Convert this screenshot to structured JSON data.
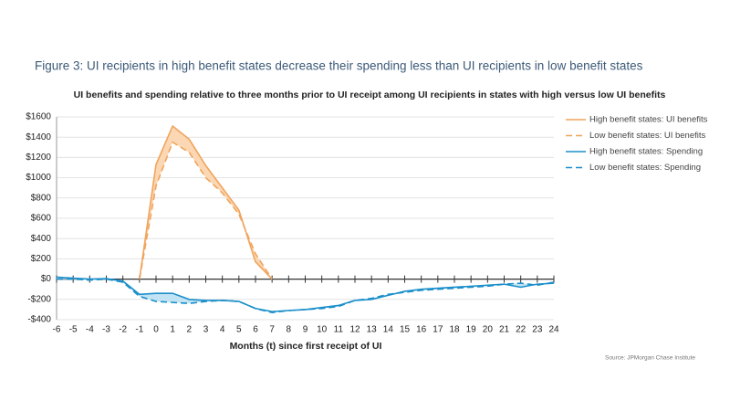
{
  "chart_data": {
    "type": "line",
    "title": "Figure 3: UI recipients in high benefit states decrease their spending less than UI recipients in low benefit states",
    "subtitle": "UI benefits and spending relative to three months prior to UI receipt among UI recipients in states with high versus low UI benefits",
    "x_label": "Months (t) since first receipt of UI",
    "source": "Source: JPMorgan Chase Institute",
    "x": [
      -6,
      -5,
      -4,
      -3,
      -2,
      -1,
      0,
      1,
      2,
      3,
      4,
      5,
      6,
      7,
      8,
      9,
      10,
      11,
      12,
      13,
      14,
      15,
      16,
      17,
      18,
      19,
      20,
      21,
      22,
      23,
      24
    ],
    "xlim": [
      -6,
      24
    ],
    "xticks": [
      -6,
      -5,
      -4,
      -3,
      -2,
      -1,
      0,
      1,
      2,
      3,
      4,
      5,
      6,
      7,
      8,
      9,
      10,
      11,
      12,
      13,
      14,
      15,
      16,
      17,
      18,
      19,
      20,
      21,
      22,
      23,
      24
    ],
    "ylim": [
      -400,
      1600
    ],
    "yticks": [
      {
        "value": -400,
        "label": "-$400"
      },
      {
        "value": -200,
        "label": "-$200"
      },
      {
        "value": 0,
        "label": "$0"
      },
      {
        "value": 200,
        "label": "$200"
      },
      {
        "value": 400,
        "label": "$400"
      },
      {
        "value": 600,
        "label": "$600"
      },
      {
        "value": 800,
        "label": "$800"
      },
      {
        "value": 1000,
        "label": "$1000"
      },
      {
        "value": 1200,
        "label": "$1200"
      },
      {
        "value": 1400,
        "label": "$1400"
      },
      {
        "value": 1600,
        "label": "$1600"
      }
    ],
    "grid": true,
    "legend": "right",
    "series": [
      {
        "name": "High benefit states: UI benefits",
        "color": "#f0a45c",
        "line_style": "solid",
        "fill_color": "#fbd7b3",
        "values": [
          null,
          null,
          null,
          null,
          null,
          0,
          1130,
          1510,
          1380,
          1120,
          900,
          680,
          170,
          0,
          null,
          null,
          null,
          null,
          null,
          null,
          null,
          null,
          null,
          null,
          null,
          null,
          null,
          null,
          null,
          null,
          null
        ]
      },
      {
        "name": "Low benefit states: UI benefits",
        "color": "#f0a45c",
        "line_style": "dashed",
        "values": [
          null,
          null,
          null,
          null,
          null,
          0,
          920,
          1350,
          1250,
          1000,
          850,
          640,
          250,
          0,
          null,
          null,
          null,
          null,
          null,
          null,
          null,
          null,
          null,
          null,
          null,
          null,
          null,
          null,
          null,
          null,
          null
        ]
      },
      {
        "name": "High benefit states: Spending",
        "color": "#1b8fca",
        "line_style": "solid",
        "fill_color": "#c2e3f4",
        "values": [
          20,
          10,
          0,
          5,
          -20,
          -150,
          -140,
          -140,
          -200,
          -210,
          -210,
          -220,
          -290,
          -320,
          -310,
          -300,
          -280,
          -260,
          -210,
          -200,
          -160,
          -120,
          -100,
          -90,
          -80,
          -70,
          -60,
          -50,
          -80,
          -50,
          -40
        ]
      },
      {
        "name": "Low benefit states: Spending",
        "color": "#1b8fca",
        "line_style": "dashed",
        "values": [
          0,
          0,
          -10,
          0,
          -30,
          -170,
          -220,
          -230,
          -240,
          -220,
          -210,
          -220,
          -290,
          -330,
          -310,
          -300,
          -290,
          -270,
          -210,
          -190,
          -150,
          -130,
          -110,
          -100,
          -90,
          -80,
          -70,
          -50,
          -40,
          -60,
          -30
        ]
      }
    ]
  }
}
